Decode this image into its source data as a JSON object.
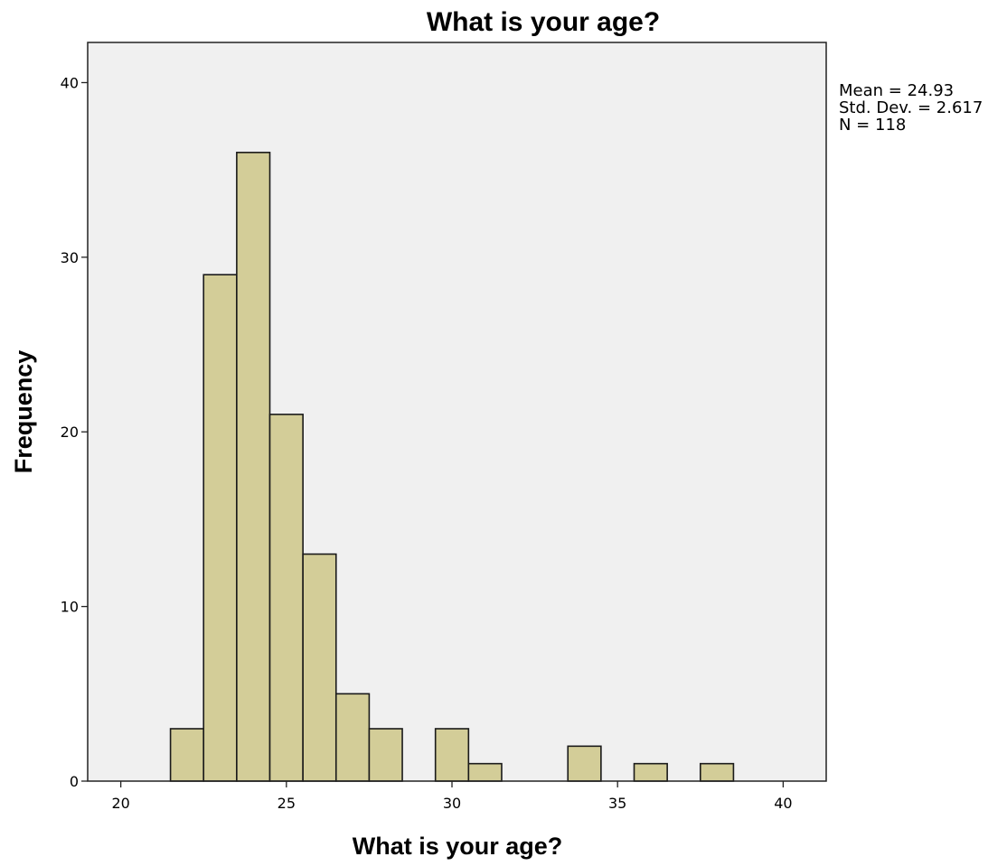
{
  "chart_data": {
    "type": "bar",
    "title": "What is your age?",
    "xlabel": "What is your age?",
    "ylabel": "Frequency",
    "xlim": [
      19,
      41.3
    ],
    "ylim": [
      0,
      42.3
    ],
    "x_ticks": [
      20,
      25,
      30,
      35,
      40
    ],
    "y_ticks": [
      0,
      10,
      20,
      30,
      40
    ],
    "bin_width": 1,
    "bins": [
      {
        "start": 21.5,
        "end": 22.5,
        "value": 3
      },
      {
        "start": 22.5,
        "end": 23.5,
        "value": 29
      },
      {
        "start": 23.5,
        "end": 24.5,
        "value": 36
      },
      {
        "start": 24.5,
        "end": 25.5,
        "value": 21
      },
      {
        "start": 25.5,
        "end": 26.5,
        "value": 13
      },
      {
        "start": 26.5,
        "end": 27.5,
        "value": 5
      },
      {
        "start": 27.5,
        "end": 28.5,
        "value": 3
      },
      {
        "start": 29.5,
        "end": 30.5,
        "value": 3
      },
      {
        "start": 30.5,
        "end": 31.5,
        "value": 1
      },
      {
        "start": 33.5,
        "end": 34.5,
        "value": 2
      },
      {
        "start": 35.5,
        "end": 36.5,
        "value": 1
      },
      {
        "start": 37.5,
        "end": 38.5,
        "value": 1
      }
    ],
    "grid": false,
    "stats": [
      "Mean = 24.93",
      "Std. Dev. = 2.617",
      "N = 118"
    ],
    "colors": {
      "bar_fill": "#d3cd98",
      "bar_stroke": "#1a1a1a",
      "plot_background": "#f0f0f0",
      "frame": "#222222"
    }
  }
}
